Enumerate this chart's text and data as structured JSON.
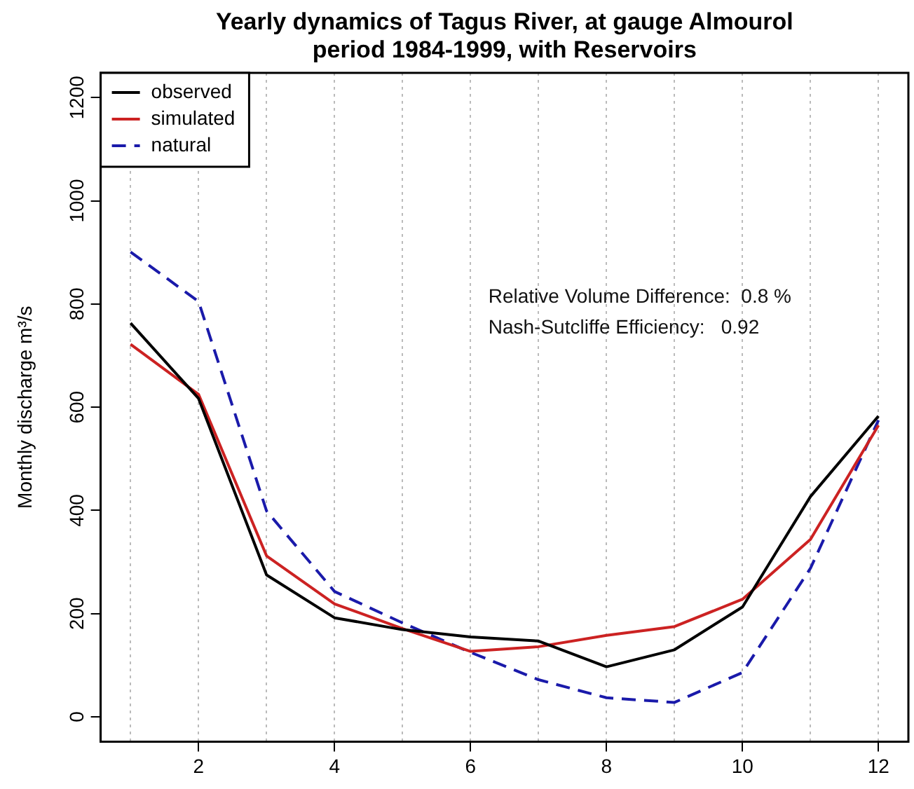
{
  "chart_data": {
    "type": "line",
    "title": "Yearly dynamics of Tagus River, at gauge Almourol\nperiod 1984-1999, with Reservoirs",
    "ylabel": "Monthly discharge m³/s",
    "x": [
      1,
      2,
      3,
      4,
      5,
      6,
      7,
      8,
      9,
      10,
      11,
      12
    ],
    "series": [
      {
        "name": "observed",
        "color": "#000000",
        "line_style": "solid",
        "values": [
          763,
          617,
          275,
          192,
          169,
          155,
          147,
          97,
          130,
          213,
          427,
          583
        ]
      },
      {
        "name": "simulated",
        "color": "#cc2222",
        "line_style": "solid",
        "values": [
          722,
          625,
          312,
          219,
          171,
          127,
          136,
          158,
          175,
          228,
          344,
          565
        ]
      },
      {
        "name": "natural",
        "color": "#1a1aaa",
        "line_style": "dashed",
        "values": [
          901,
          805,
          399,
          243,
          182,
          125,
          72,
          37,
          28,
          86,
          288,
          575
        ]
      }
    ],
    "xlim": [
      0.56,
      12.44
    ],
    "ylim": [
      -48,
      1248
    ],
    "xticks": [
      {
        "value": 1,
        "label": null
      },
      2,
      {
        "value": 3,
        "label": null
      },
      4,
      {
        "value": 5,
        "label": null
      },
      6,
      {
        "value": 7,
        "label": null
      },
      8,
      {
        "value": 9,
        "label": null
      },
      10,
      {
        "value": 11,
        "label": null
      },
      12
    ],
    "yticks": [
      0,
      200,
      400,
      600,
      800,
      1000,
      1200
    ],
    "grid": "x",
    "legend": "top left",
    "marker": "none",
    "annotations": [
      "Relative Volume Difference:  0.8 %",
      "Nash-Sutcliffe Efficiency:   0.92"
    ]
  }
}
